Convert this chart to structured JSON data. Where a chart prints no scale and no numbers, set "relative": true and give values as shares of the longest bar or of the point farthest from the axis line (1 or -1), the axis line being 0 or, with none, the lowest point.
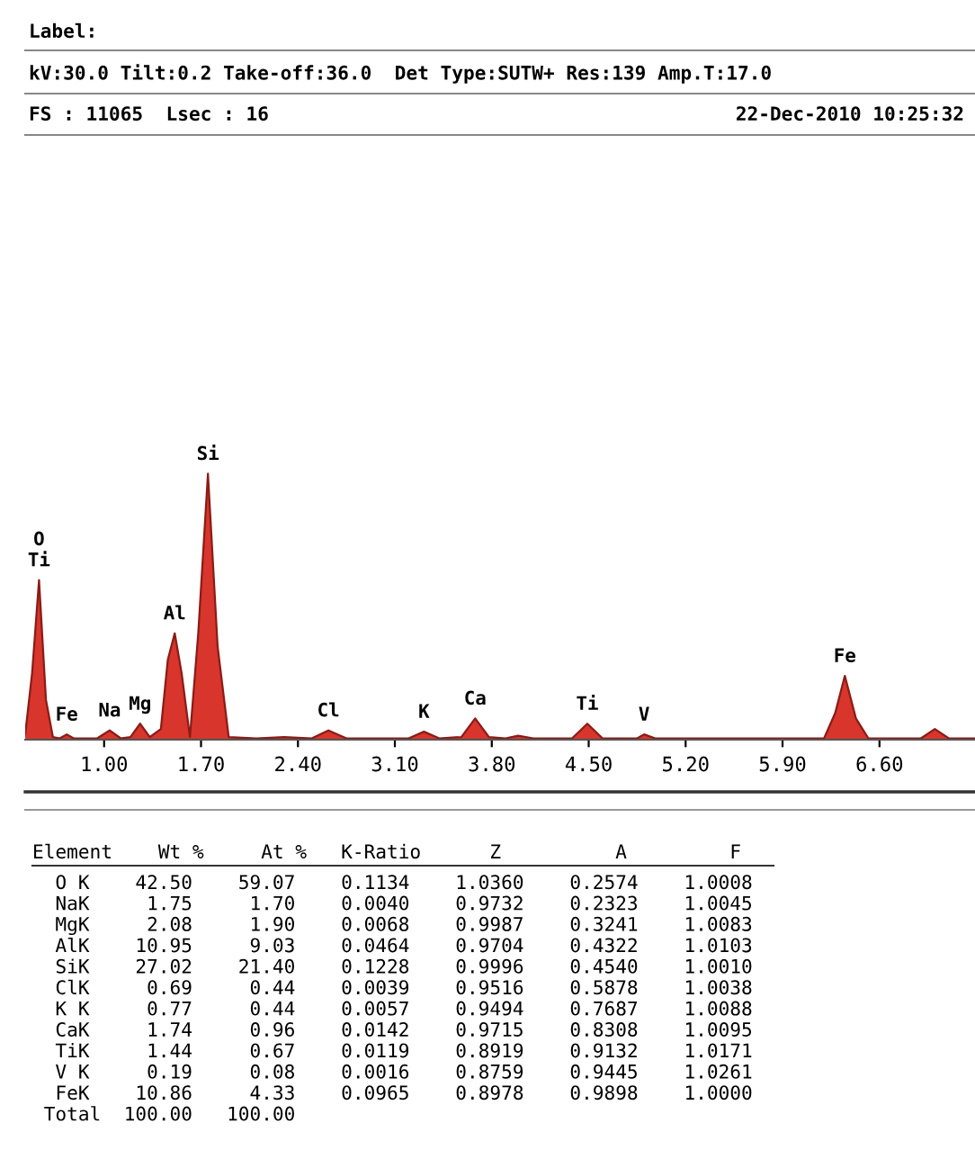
{
  "chart_data": {
    "type": "area",
    "relative": true,
    "x": [
      0.43,
      0.48,
      0.53,
      0.58,
      0.63,
      0.68,
      0.73,
      0.78,
      0.95,
      1.04,
      1.12,
      1.19,
      1.26,
      1.33,
      1.41,
      1.46,
      1.51,
      1.56,
      1.62,
      1.68,
      1.75,
      1.82,
      1.9,
      2.1,
      2.3,
      2.5,
      2.62,
      2.75,
      3.0,
      3.2,
      3.31,
      3.42,
      3.58,
      3.68,
      3.78,
      3.9,
      3.99,
      4.1,
      4.38,
      4.49,
      4.6,
      4.85,
      4.9,
      4.98,
      5.5,
      6.2,
      6.28,
      6.35,
      6.43,
      6.52,
      6.9,
      7.0,
      7.1,
      7.29
    ],
    "series": [
      {
        "color": "#d8352c",
        "values": [
          0.02,
          0.25,
          0.6,
          0.15,
          0.01,
          0.005,
          0.02,
          0.005,
          0.005,
          0.035,
          0.005,
          0.01,
          0.06,
          0.01,
          0.04,
          0.3,
          0.4,
          0.25,
          0.01,
          0.4,
          1.0,
          0.35,
          0.01,
          0.005,
          0.01,
          0.005,
          0.035,
          0.005,
          0.005,
          0.005,
          0.03,
          0.005,
          0.01,
          0.08,
          0.01,
          0.005,
          0.015,
          0.005,
          0.005,
          0.06,
          0.005,
          0.005,
          0.02,
          0.005,
          0.005,
          0.005,
          0.1,
          0.24,
          0.08,
          0.005,
          0.005,
          0.04,
          0.005,
          0.005
        ]
      }
    ],
    "xlim": [
      0.43,
      7.29
    ],
    "xticks": [
      {
        "value": 1.0,
        "label": "1.00"
      },
      {
        "value": 1.7,
        "label": "1.70"
      },
      {
        "value": 2.4,
        "label": "2.40"
      },
      {
        "value": 3.1,
        "label": "3.10"
      },
      {
        "value": 3.8,
        "label": "3.80"
      },
      {
        "value": 4.5,
        "label": "4.50"
      },
      {
        "value": 5.2,
        "label": "5.20"
      },
      {
        "value": 5.9,
        "label": "5.90"
      },
      {
        "value": 6.6,
        "label": "6.60"
      }
    ],
    "tick_labels": "x",
    "grid": false,
    "legend": false,
    "annotations": [
      "Label:",
      "kV:30.0 Tilt:0.2 Take-off:36.0  Det Type:SUTW+ Res:139 Amp.T:17.0",
      "FS : 11065  Lsec : 16",
      "22-Dec-2010 10:25:32",
      "Element    Wt %     At %   K-Ratio      Z          A         F",
      "  O K    42.50    59.07    0.1134    1.0360    0.2574    1.0008",
      "  NaK     1.75     1.70    0.0040    0.9732    0.2323    1.0045",
      "  MgK     2.08     1.90    0.0068    0.9987    0.3241    1.0083",
      "  AlK    10.95     9.03    0.0464    0.9704    0.4322    1.0103",
      "  SiK    27.02    21.40    0.1228    0.9996    0.4540    1.0010",
      "  ClK     0.69     0.44    0.0039    0.9516    0.5878    1.0038",
      "  K K     0.77     0.44    0.0057    0.9494    0.7687    1.0088",
      "  CaK     1.74     0.96    0.0142    0.9715    0.8308    1.0095",
      "  TiK     1.44     0.67    0.0119    0.8919    0.9132    1.0171",
      "  V K     0.19     0.08    0.0016    0.8759    0.9445    1.0261",
      "  FeK    10.86     4.33    0.0965    0.8978    0.9898    1.0000",
      " Total  100.00   100.00",
      {
        "text": "O\nTi",
        "x": 0.53,
        "y": 0.6
      },
      {
        "text": "Fe",
        "x": 0.73,
        "y": 0.02
      },
      {
        "text": "Na",
        "x": 1.04,
        "y": 0.035
      },
      {
        "text": "Mg",
        "x": 1.26,
        "y": 0.06
      },
      {
        "text": "Al",
        "x": 1.51,
        "y": 0.4
      },
      {
        "text": "Si",
        "x": 1.75,
        "y": 1.0
      },
      {
        "text": "Cl",
        "x": 2.62,
        "y": 0.035
      },
      {
        "text": "K",
        "x": 3.31,
        "y": 0.03
      },
      {
        "text": "Ca",
        "x": 3.68,
        "y": 0.08
      },
      {
        "text": "Ti",
        "x": 4.49,
        "y": 0.06
      },
      {
        "text": "V",
        "x": 4.9,
        "y": 0.02
      },
      {
        "text": "Fe",
        "x": 6.35,
        "y": 0.24
      }
    ]
  }
}
